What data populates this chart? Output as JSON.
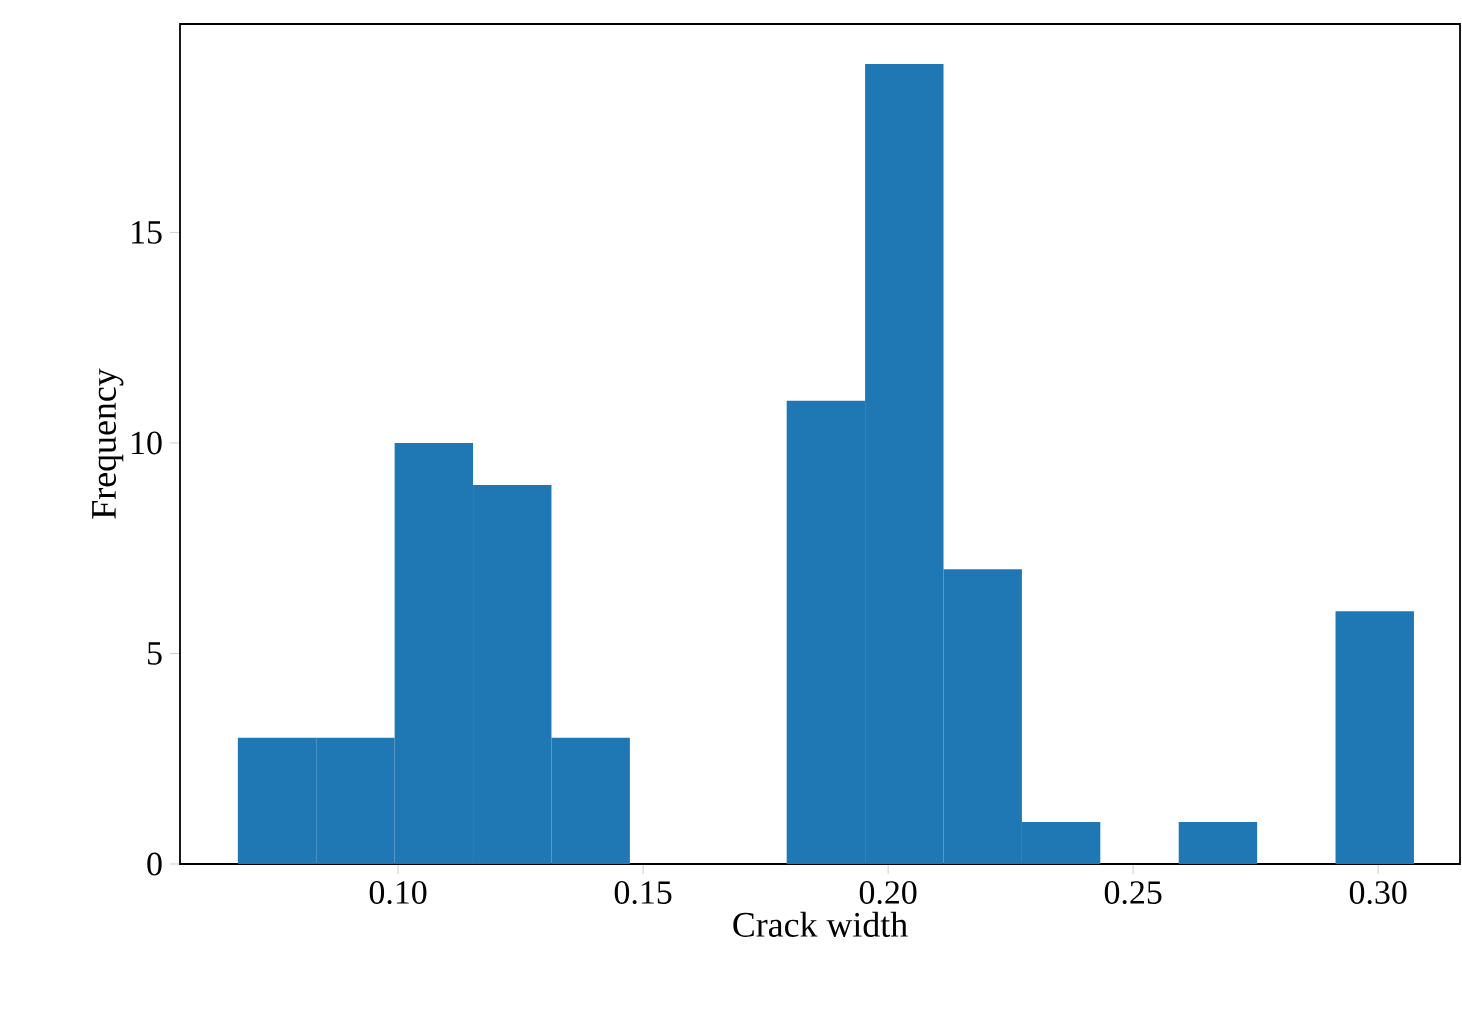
{
  "chart_data": {
    "type": "histogram",
    "xlabel": "Crack width",
    "ylabel": "Frequency",
    "color": "#1f77b4",
    "bins": [
      0.0673,
      0.0833,
      0.0993,
      0.1153,
      0.1313,
      0.1473,
      0.1633,
      0.1793,
      0.1953,
      0.2113,
      0.2273,
      0.2433,
      0.2593,
      0.2753,
      0.2913,
      0.3073
    ],
    "values": [
      3,
      3,
      10,
      9,
      3,
      0,
      0,
      11,
      19,
      7,
      1,
      0,
      1,
      0,
      6
    ],
    "xlim": [
      0.0555,
      0.3167
    ],
    "ylim": [
      0,
      19.95
    ],
    "xticks": [
      {
        "value": 0.1,
        "label": "0.10"
      },
      {
        "value": 0.15,
        "label": "0.15"
      },
      {
        "value": 0.2,
        "label": "0.20"
      },
      {
        "value": 0.25,
        "label": "0.25"
      },
      {
        "value": 0.3,
        "label": "0.30"
      }
    ],
    "yticks": [
      0,
      5,
      10,
      15
    ]
  }
}
